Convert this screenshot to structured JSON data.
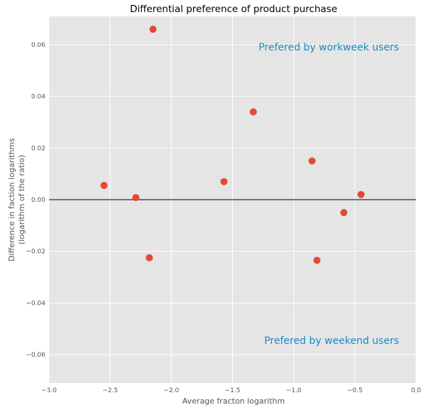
{
  "chart_data": {
    "type": "scatter",
    "title": "Differential preference of product purchase",
    "xlabel": "Average fracton logarithm",
    "ylabel_lines": [
      "Difference in faction logarithms",
      "(logarithm of the ratio)"
    ],
    "xlim": [
      -3.0,
      0.0
    ],
    "ylim": [
      -0.071,
      0.071
    ],
    "xticks": [
      -3.0,
      -2.5,
      -2.0,
      -1.5,
      -1.0,
      -0.5,
      0.0
    ],
    "xtick_labels": [
      "−3.0",
      "−2.5",
      "−2.0",
      "−1.5",
      "−1.0",
      "−0.5",
      "0.0"
    ],
    "yticks": [
      0.06,
      0.04,
      0.02,
      0.0,
      -0.02,
      -0.04,
      -0.06
    ],
    "ytick_labels": [
      "0.06",
      "0.04",
      "0.02",
      "0.00",
      "−0.02",
      "−0.04",
      "−0.06"
    ],
    "grid": true,
    "reference_line_y": 0.0,
    "annotations": [
      "Prefered by workweek users",
      "Prefered by weekend users"
    ],
    "points": [
      {
        "x": -2.55,
        "y": 0.0055
      },
      {
        "x": -2.29,
        "y": 0.0008
      },
      {
        "x": -2.15,
        "y": 0.066
      },
      {
        "x": -2.18,
        "y": -0.0225
      },
      {
        "x": -1.57,
        "y": 0.007
      },
      {
        "x": -1.33,
        "y": 0.034
      },
      {
        "x": -0.85,
        "y": 0.015
      },
      {
        "x": -0.81,
        "y": -0.0235
      },
      {
        "x": -0.59,
        "y": -0.005
      },
      {
        "x": -0.45,
        "y": 0.002
      }
    ],
    "colors": {
      "background": "#e5e5e5",
      "grid": "#ffffff",
      "marker": "#e24a33",
      "annotation": "#1a8bc4"
    }
  }
}
